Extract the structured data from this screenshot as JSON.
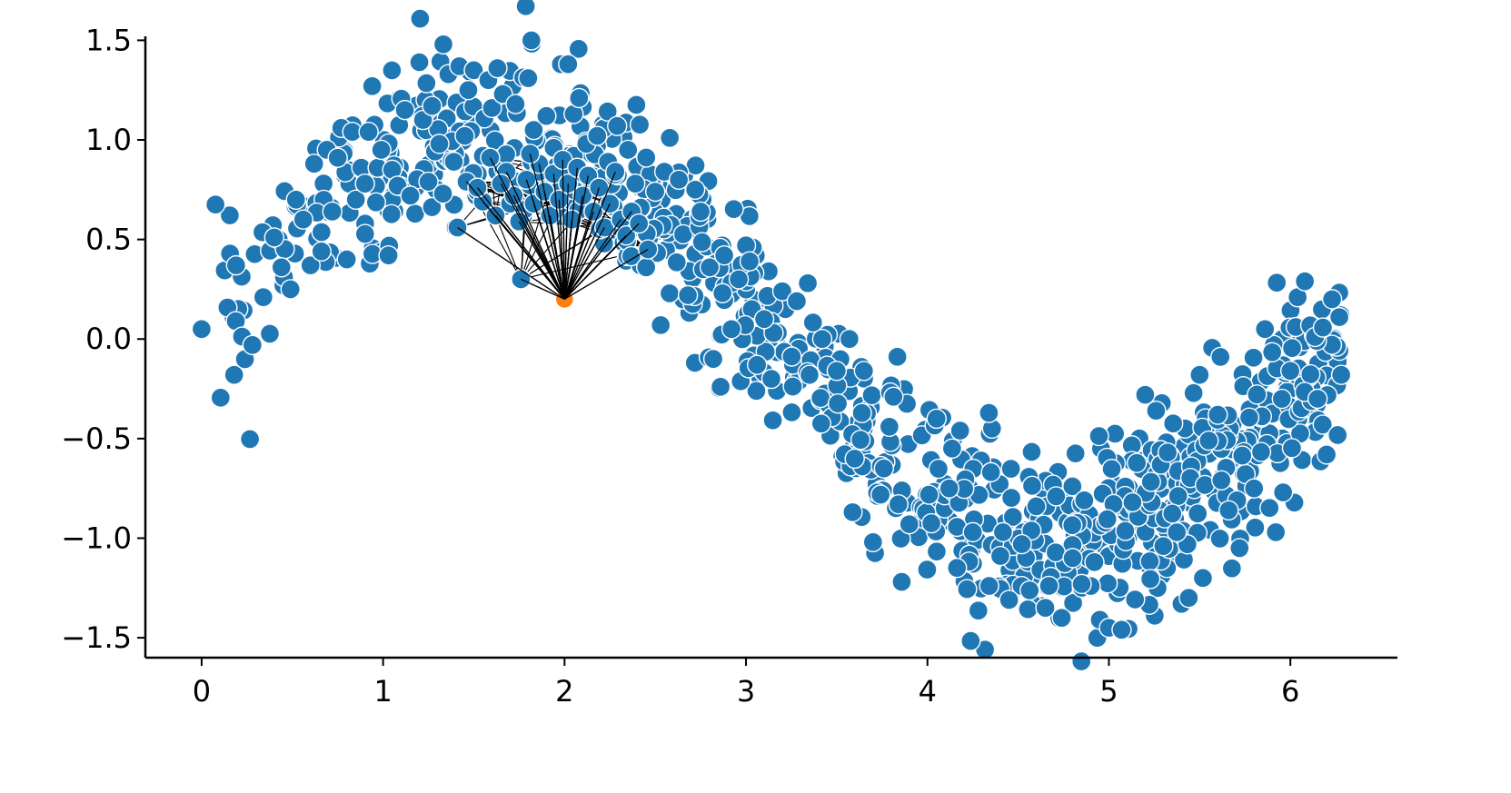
{
  "chart_data": {
    "type": "scatter",
    "title": "",
    "xlabel": "",
    "ylabel": "",
    "xlim": [
      -0.31,
      6.59
    ],
    "ylim": [
      -1.6,
      1.52
    ],
    "x_ticks": [
      0,
      1,
      2,
      3,
      4,
      5,
      6
    ],
    "x_tick_labels": [
      "0",
      "1",
      "2",
      "3",
      "4",
      "5",
      "6"
    ],
    "y_ticks": [
      1.5,
      1.0,
      0.5,
      0.0,
      -0.5,
      -1.0,
      -1.5
    ],
    "y_tick_labels": [
      "1.5",
      "1.0",
      "0.5",
      "0.0",
      "−0.5",
      "−1.0",
      "−1.5"
    ],
    "grid": false,
    "legend": "none",
    "spines": [
      "left",
      "bottom"
    ],
    "colors": {
      "points": "#1f77b4",
      "query": "#ff7f0e",
      "edges": "#000000",
      "point_edge": "#ffffff"
    },
    "dense_cloud": {
      "function": "sin(x) + noise",
      "count": 900,
      "x_range": [
        0.05,
        6.28
      ],
      "noise_sd": 0.22
    },
    "sample_points": [
      [
        0.0,
        0.05
      ],
      [
        0.19,
        0.37
      ],
      [
        0.28,
        -0.03
      ],
      [
        0.34,
        0.21
      ],
      [
        0.4,
        0.51
      ],
      [
        0.44,
        0.36
      ],
      [
        0.49,
        0.25
      ],
      [
        0.52,
        0.7
      ],
      [
        0.56,
        0.6
      ],
      [
        0.6,
        0.37
      ],
      [
        0.62,
        0.88
      ],
      [
        0.66,
        0.44
      ],
      [
        0.69,
        0.95
      ],
      [
        0.72,
        0.64
      ],
      [
        0.75,
        0.91
      ],
      [
        0.77,
        1.06
      ],
      [
        0.8,
        0.4
      ],
      [
        0.83,
        1.04
      ],
      [
        0.85,
        0.7
      ],
      [
        0.88,
        0.86
      ],
      [
        0.9,
        0.78
      ],
      [
        0.92,
        1.04
      ],
      [
        0.94,
        1.27
      ],
      [
        0.97,
        0.86
      ],
      [
        0.99,
        0.95
      ],
      [
        1.03,
        0.42
      ],
      [
        1.05,
        0.85
      ],
      [
        1.08,
        0.77
      ],
      [
        1.12,
        1.15
      ],
      [
        1.15,
        0.72
      ],
      [
        1.2,
        1.39
      ],
      [
        1.22,
        1.1
      ],
      [
        1.25,
        0.79
      ],
      [
        1.27,
        1.17
      ],
      [
        1.31,
        0.98
      ],
      [
        1.33,
        0.73
      ],
      [
        1.36,
        1.33
      ],
      [
        1.39,
        0.89
      ],
      [
        1.4,
        0.56
      ],
      [
        1.42,
        1.37
      ],
      [
        1.45,
        1.02
      ],
      [
        1.47,
        1.25
      ],
      [
        1.5,
        1.35
      ],
      [
        1.52,
        0.74
      ],
      [
        1.55,
        0.92
      ],
      [
        1.58,
        1.3
      ],
      [
        1.6,
        1.16
      ],
      [
        1.63,
        1.36
      ],
      [
        1.66,
        1.23
      ],
      [
        1.7,
        0.68
      ],
      [
        1.73,
        1.18
      ],
      [
        1.76,
        0.3
      ],
      [
        1.78,
        0.65
      ],
      [
        1.8,
        1.31
      ],
      [
        1.83,
        1.05
      ],
      [
        1.86,
        0.84
      ],
      [
        1.9,
        1.12
      ],
      [
        1.94,
        0.96
      ],
      [
        1.98,
        1.38
      ],
      [
        2.02,
        1.38
      ],
      [
        2.05,
        1.13
      ],
      [
        2.08,
        1.21
      ],
      [
        2.12,
        0.98
      ],
      [
        2.18,
        1.02
      ],
      [
        2.24,
        0.89
      ],
      [
        2.29,
        1.07
      ],
      [
        2.35,
        0.95
      ],
      [
        2.39,
        0.78
      ],
      [
        2.42,
        0.66
      ],
      [
        2.45,
        0.36
      ],
      [
        2.5,
        0.74
      ],
      [
        2.53,
        0.07
      ],
      [
        2.55,
        0.84
      ],
      [
        2.58,
        1.01
      ],
      [
        2.63,
        0.8
      ],
      [
        2.68,
        0.22
      ],
      [
        2.72,
        0.75
      ],
      [
        2.75,
        0.64
      ],
      [
        2.8,
        0.36
      ],
      [
        2.82,
        -0.1
      ],
      [
        2.86,
        -0.24
      ],
      [
        2.88,
        0.42
      ],
      [
        2.92,
        0.05
      ],
      [
        2.96,
        0.3
      ],
      [
        3.0,
        0.47
      ],
      [
        3.02,
        0.39
      ],
      [
        3.1,
        0.1
      ],
      [
        3.14,
        -0.2
      ],
      [
        3.2,
        0.24
      ],
      [
        3.28,
        0.19
      ],
      [
        3.35,
        -0.18
      ],
      [
        3.42,
        0.0
      ],
      [
        3.5,
        -0.16
      ],
      [
        3.57,
        0.0
      ],
      [
        3.65,
        -0.16
      ],
      [
        3.7,
        -1.02
      ],
      [
        3.76,
        -0.65
      ],
      [
        3.84,
        -0.83
      ],
      [
        3.9,
        -0.93
      ],
      [
        4.05,
        -0.4
      ],
      [
        4.12,
        -0.75
      ],
      [
        4.18,
        -0.46
      ],
      [
        4.25,
        -0.97
      ],
      [
        4.34,
        -1.24
      ],
      [
        4.45,
        -1.31
      ],
      [
        4.52,
        -1.03
      ],
      [
        4.6,
        -0.84
      ],
      [
        4.65,
        -1.35
      ],
      [
        4.74,
        -1.4
      ],
      [
        4.8,
        -1.1
      ],
      [
        4.85,
        -1.23
      ],
      [
        4.92,
        -1.12
      ],
      [
        4.95,
        -1.41
      ],
      [
        5.0,
        -1.45
      ],
      [
        5.07,
        -1.46
      ],
      [
        5.13,
        -0.82
      ],
      [
        5.2,
        -0.28
      ],
      [
        5.26,
        -0.36
      ],
      [
        5.3,
        -1.04
      ],
      [
        5.4,
        -1.33
      ],
      [
        5.44,
        -1.3
      ],
      [
        5.5,
        -0.18
      ],
      [
        5.55,
        -0.51
      ],
      [
        5.6,
        -0.38
      ],
      [
        5.66,
        -0.86
      ],
      [
        5.72,
        -1.05
      ],
      [
        5.8,
        -0.75
      ],
      [
        5.86,
        0.05
      ],
      [
        5.92,
        -0.97
      ],
      [
        5.96,
        -0.77
      ],
      [
        6.0,
        -0.16
      ],
      [
        6.04,
        0.21
      ],
      [
        6.08,
        0.29
      ],
      [
        6.15,
        -0.3
      ],
      [
        6.2,
        -0.58
      ],
      [
        6.23,
        0.2
      ],
      [
        6.27,
        0.11
      ],
      [
        6.28,
        -0.18
      ]
    ],
    "query_point": {
      "x": 2.0,
      "y": 0.2
    },
    "neighbors": [
      [
        1.41,
        0.56
      ],
      [
        1.46,
        0.79
      ],
      [
        1.55,
        0.69
      ],
      [
        1.59,
        0.91
      ],
      [
        1.62,
        0.62
      ],
      [
        1.68,
        0.84
      ],
      [
        1.72,
        0.72
      ],
      [
        1.75,
        0.59
      ],
      [
        1.76,
        0.3
      ],
      [
        1.79,
        0.8
      ],
      [
        1.83,
        0.68
      ],
      [
        1.86,
        0.88
      ],
      [
        1.89,
        0.74
      ],
      [
        1.92,
        0.62
      ],
      [
        1.94,
        0.83
      ],
      [
        1.97,
        0.7
      ],
      [
        1.99,
        0.9
      ],
      [
        2.02,
        0.78
      ],
      [
        2.04,
        0.6
      ],
      [
        2.07,
        0.86
      ],
      [
        2.1,
        0.72
      ],
      [
        2.13,
        0.82
      ],
      [
        2.16,
        0.64
      ],
      [
        2.19,
        0.76
      ],
      [
        2.22,
        0.56
      ],
      [
        2.25,
        0.68
      ],
      [
        2.28,
        0.84
      ],
      [
        2.31,
        0.6
      ],
      [
        2.34,
        0.52
      ],
      [
        2.37,
        0.64
      ],
      [
        2.41,
        0.58
      ],
      [
        2.46,
        0.45
      ],
      [
        1.52,
        0.76
      ],
      [
        1.65,
        0.78
      ],
      [
        1.81,
        0.93
      ]
    ]
  }
}
